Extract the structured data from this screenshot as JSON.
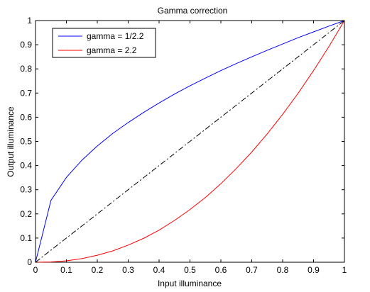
{
  "chart_data": {
    "type": "line",
    "title": "Gamma correction",
    "xlabel": "Input illuminance",
    "ylabel": "Output illuminance",
    "xlim": [
      0,
      1
    ],
    "ylim": [
      0,
      1
    ],
    "x_ticks": [
      0,
      0.1,
      0.2,
      0.3,
      0.4,
      0.5,
      0.6,
      0.7,
      0.8,
      0.9,
      1
    ],
    "x_tick_labels": [
      "0",
      "0.1",
      "0.2",
      "0.3",
      "0.4",
      "0.5",
      "0.6",
      "0.7",
      "0.8",
      "0.9",
      "1"
    ],
    "y_ticks": [
      0,
      0.1,
      0.2,
      0.3,
      0.4,
      0.5,
      0.6,
      0.7,
      0.8,
      0.9,
      1
    ],
    "y_tick_labels": [
      "0",
      "0.1",
      "0.2",
      "0.3",
      "0.4",
      "0.5",
      "0.6",
      "0.7",
      "0.8",
      "0.9",
      "1"
    ],
    "grid": false,
    "legend_position": "top-left",
    "x": [
      0,
      0.05,
      0.1,
      0.15,
      0.2,
      0.25,
      0.3,
      0.35,
      0.4,
      0.45,
      0.5,
      0.55,
      0.6,
      0.65,
      0.7,
      0.75,
      0.8,
      0.85,
      0.9,
      0.95,
      1
    ],
    "series": [
      {
        "name": "gamma = 1/2.2",
        "color": "#0000ff",
        "style": "solid",
        "in_legend": true,
        "values": [
          0,
          0.256,
          0.351,
          0.422,
          0.481,
          0.533,
          0.578,
          0.62,
          0.659,
          0.696,
          0.73,
          0.762,
          0.793,
          0.822,
          0.85,
          0.877,
          0.903,
          0.929,
          0.953,
          0.977,
          1
        ]
      },
      {
        "name": "gamma = 2.2",
        "color": "#ff0000",
        "style": "solid",
        "in_legend": true,
        "values": [
          0,
          0.001,
          0.006,
          0.015,
          0.029,
          0.047,
          0.071,
          0.099,
          0.133,
          0.173,
          0.218,
          0.268,
          0.325,
          0.388,
          0.456,
          0.531,
          0.612,
          0.699,
          0.793,
          0.893,
          1
        ]
      },
      {
        "name": "",
        "color": "#000000",
        "style": "dash-dot",
        "in_legend": false,
        "values": [
          0,
          0.05,
          0.1,
          0.15,
          0.2,
          0.25,
          0.3,
          0.35,
          0.4,
          0.45,
          0.5,
          0.55,
          0.6,
          0.65,
          0.7,
          0.75,
          0.8,
          0.85,
          0.9,
          0.95,
          1
        ]
      }
    ]
  }
}
